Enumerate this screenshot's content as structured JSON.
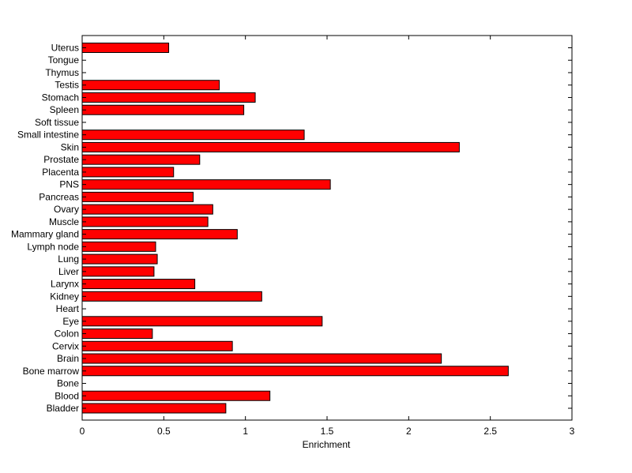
{
  "chart_data": {
    "type": "bar",
    "orientation": "horizontal",
    "xlabel": "Enrichment",
    "ylabel": "",
    "title": "",
    "xlim": [
      0,
      3
    ],
    "xticks": [
      0,
      0.5,
      1,
      1.5,
      2,
      2.5,
      3
    ],
    "xtick_labels": [
      "0",
      "0.5",
      "1",
      "1.5",
      "2",
      "2.5",
      "3"
    ],
    "grid": false,
    "bar_color": "#ff0000",
    "categories": [
      "Bladder",
      "Blood",
      "Bone",
      "Bone marrow",
      "Brain",
      "Cervix",
      "Colon",
      "Eye",
      "Heart",
      "Kidney",
      "Larynx",
      "Liver",
      "Lung",
      "Lymph node",
      "Mammary gland",
      "Muscle",
      "Ovary",
      "Pancreas",
      "PNS",
      "Placenta",
      "Prostate",
      "Skin",
      "Small intestine",
      "Soft tissue",
      "Spleen",
      "Stomach",
      "Testis",
      "Thymus",
      "Tongue",
      "Uterus"
    ],
    "values": [
      0.88,
      1.15,
      0,
      2.61,
      2.2,
      0.92,
      0.43,
      1.47,
      0,
      1.1,
      0.69,
      0.44,
      0.46,
      0.45,
      0.95,
      0.77,
      0.8,
      0.68,
      1.52,
      0.56,
      0.72,
      2.31,
      1.36,
      0,
      0.99,
      1.06,
      0.84,
      0,
      0,
      0.53
    ]
  }
}
